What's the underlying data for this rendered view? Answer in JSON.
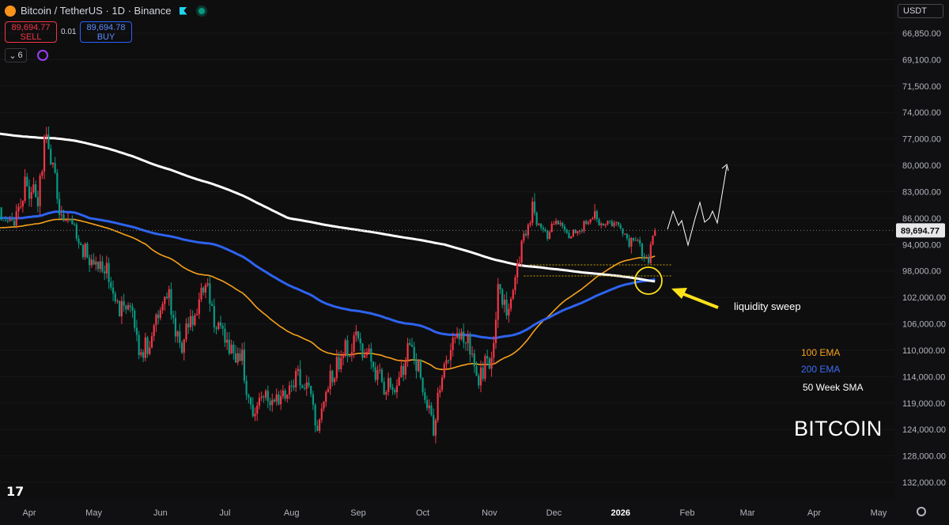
{
  "header": {
    "symbol_title": "Bitcoin / TetherUS · 1D · Binance",
    "sell_price": "89,694.77",
    "sell_label": "SELL",
    "spread": "0.01",
    "buy_price": "89,694.78",
    "buy_label": "BUY",
    "indicator_count": "6",
    "currency": "USDT"
  },
  "colors": {
    "up_candle": "#089981",
    "down_candle": "#f23645",
    "ema100": "#f7a21b",
    "ema200": "#2e63f0",
    "sma50w": "#ffffff",
    "annotation_arrow": "#ffe21a"
  },
  "icons": [
    "btc-logo-icon",
    "flag-icon",
    "live-status-icon",
    "chevron-down-icon",
    "loading-icon",
    "tradingview-logo-icon",
    "settings-gear-icon"
  ],
  "chart_data": {
    "type": "candlestick",
    "interval": "1D",
    "y_axis": {
      "scale": "inverted",
      "ticks": [
        "66,850.00",
        "69,100.00",
        "71,500.00",
        "74,000.00",
        "77,000.00",
        "80,000.00",
        "83,000.00",
        "86,000.00",
        "94,000.00",
        "98,000.00",
        "102,000.00",
        "106,000.00",
        "110,000.00",
        "114,000.00",
        "119,000.00",
        "124,000.00",
        "128,000.00",
        "132,000.00"
      ],
      "tick_values": [
        66850,
        69100,
        71500,
        74000,
        77000,
        80000,
        83000,
        86000,
        94000,
        98000,
        102000,
        106000,
        110000,
        114000,
        119000,
        124000,
        128000,
        132000
      ],
      "last_price_label": "89,694.77",
      "last_price": 89694.77
    },
    "x_axis": {
      "ticks": [
        "Apr",
        "May",
        "Jun",
        "Jul",
        "Aug",
        "Sep",
        "Oct",
        "Nov",
        "Dec",
        "2026",
        "Feb",
        "Mar",
        "Apr",
        "May"
      ],
      "tick_dates": [
        "2025-04-01",
        "2025-05-01",
        "2025-06-01",
        "2025-07-01",
        "2025-08-01",
        "2025-09-01",
        "2025-10-01",
        "2025-11-01",
        "2025-12-01",
        "2026-01-01",
        "2026-02-01",
        "2026-03-01",
        "2026-04-01",
        "2026-05-01"
      ],
      "range": [
        "2025-02-28",
        "2026-05-14"
      ]
    },
    "price_path": [
      [
        "2025-02-28",
        83000
      ],
      [
        "2025-03-05",
        87000
      ],
      [
        "2025-03-10",
        80000
      ],
      [
        "2025-03-15",
        84000
      ],
      [
        "2025-03-20",
        86500
      ],
      [
        "2025-03-25",
        87500
      ],
      [
        "2025-03-30",
        82500
      ],
      [
        "2025-04-05",
        83500
      ],
      [
        "2025-04-09",
        76000
      ],
      [
        "2025-04-15",
        84500
      ],
      [
        "2025-04-21",
        87500
      ],
      [
        "2025-04-25",
        94500
      ],
      [
        "2025-05-01",
        96500
      ],
      [
        "2025-05-07",
        97000
      ],
      [
        "2025-05-11",
        104000
      ],
      [
        "2025-05-18",
        103500
      ],
      [
        "2025-05-22",
        110500
      ],
      [
        "2025-05-26",
        109000
      ],
      [
        "2025-05-31",
        104000
      ],
      [
        "2025-06-05",
        101500
      ],
      [
        "2025-06-10",
        110000
      ],
      [
        "2025-06-14",
        105500
      ],
      [
        "2025-06-18",
        104500
      ],
      [
        "2025-06-22",
        99000
      ],
      [
        "2025-06-27",
        107000
      ],
      [
        "2025-07-03",
        109500
      ],
      [
        "2025-07-09",
        111000
      ],
      [
        "2025-07-11",
        117500
      ],
      [
        "2025-07-14",
        121500
      ],
      [
        "2025-07-18",
        117800
      ],
      [
        "2025-07-24",
        118500
      ],
      [
        "2025-07-30",
        117800
      ],
      [
        "2025-08-03",
        113500
      ],
      [
        "2025-08-09",
        116500
      ],
      [
        "2025-08-13",
        123500
      ],
      [
        "2025-08-18",
        115500
      ],
      [
        "2025-08-25",
        110500
      ],
      [
        "2025-08-31",
        108200
      ],
      [
        "2025-09-06",
        110800
      ],
      [
        "2025-09-13",
        115800
      ],
      [
        "2025-09-19",
        115700
      ],
      [
        "2025-09-25",
        109000
      ],
      [
        "2025-09-30",
        114000
      ],
      [
        "2025-10-06",
        124000
      ],
      [
        "2025-10-10",
        113000
      ],
      [
        "2025-10-14",
        111000
      ],
      [
        "2025-10-17",
        106500
      ],
      [
        "2025-10-22",
        108000
      ],
      [
        "2025-10-27",
        114500
      ],
      [
        "2025-11-02",
        110500
      ],
      [
        "2025-11-05",
        101500
      ],
      [
        "2025-11-09",
        104700
      ],
      [
        "2025-11-13",
        99700
      ],
      [
        "2025-11-17",
        92000
      ],
      [
        "2025-11-21",
        84500
      ],
      [
        "2025-11-24",
        88300
      ],
      [
        "2025-11-28",
        91000
      ],
      [
        "2025-12-02",
        86500
      ],
      [
        "2025-12-07",
        91500
      ],
      [
        "2025-12-12",
        90300
      ],
      [
        "2025-12-18",
        85500
      ],
      [
        "2025-12-24",
        87600
      ],
      [
        "2025-12-30",
        87000
      ],
      [
        "2026-01-05",
        93500
      ],
      [
        "2026-01-09",
        92000
      ],
      [
        "2026-01-12",
        96500
      ],
      [
        "2026-01-15",
        95000
      ],
      [
        "2026-01-17",
        89694.77
      ]
    ],
    "annotations": {
      "liquidity_sweep_label": "liquidity sweep",
      "ema100_label": "100 EMA",
      "ema200_label": "200 EMA",
      "sma50w_label": "50 Week SMA",
      "title_overlay": "BITCOIN"
    }
  }
}
